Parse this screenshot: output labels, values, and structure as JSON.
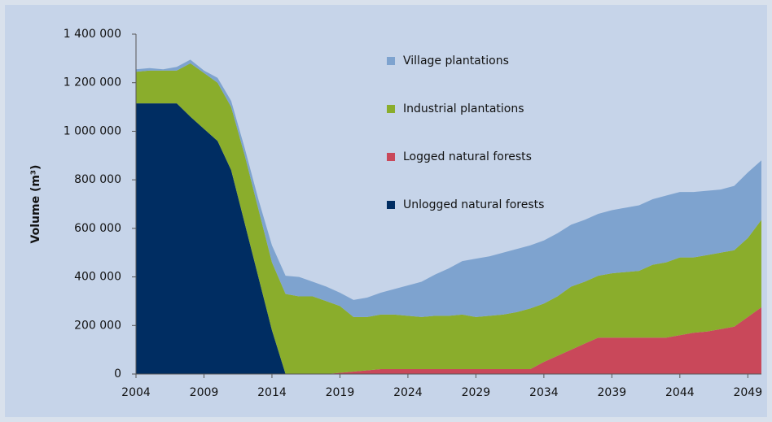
{
  "chart_data": {
    "type": "stacked_area",
    "y_label": "Volume (m³)",
    "x": [
      2004,
      2005,
      2006,
      2007,
      2008,
      2009,
      2010,
      2011,
      2012,
      2013,
      2014,
      2015,
      2016,
      2017,
      2018,
      2019,
      2020,
      2021,
      2022,
      2023,
      2024,
      2025,
      2026,
      2027,
      2028,
      2029,
      2030,
      2031,
      2032,
      2033,
      2034,
      2035,
      2036,
      2037,
      2038,
      2039,
      2040,
      2041,
      2042,
      2043,
      2044,
      2045,
      2046,
      2047,
      2048,
      2049,
      2050
    ],
    "xlim": [
      2004,
      2050
    ],
    "xticks": [
      2004,
      2009,
      2014,
      2019,
      2024,
      2029,
      2034,
      2039,
      2044,
      2049
    ],
    "ylim": [
      0,
      1400000
    ],
    "yticks": [
      0,
      {
        "value": 200000,
        "label": "200 000"
      },
      {
        "value": 400000,
        "label": "400 000"
      },
      {
        "value": 600000,
        "label": "600 000"
      },
      {
        "value": 800000,
        "label": "800 000"
      },
      {
        "value": 1000000,
        "label": "1 000 000"
      },
      {
        "value": 1200000,
        "label": "1 200 000"
      },
      {
        "value": 1400000,
        "label": "1 400 000"
      }
    ],
    "grid": false,
    "series": [
      {
        "name": "Unlogged natural forests",
        "color": "#002d62",
        "values": [
          1115000,
          1115000,
          1115000,
          1115000,
          1060000,
          1010000,
          960000,
          840000,
          620000,
          400000,
          180000,
          0,
          0,
          0,
          0,
          0,
          0,
          0,
          0,
          0,
          0,
          0,
          0,
          0,
          0,
          0,
          0,
          0,
          0,
          0,
          0,
          0,
          0,
          0,
          0,
          0,
          0,
          0,
          0,
          0,
          0,
          0,
          0,
          0,
          0,
          0,
          0
        ]
      },
      {
        "name": "Logged natural forests",
        "color": "#c9485a",
        "values": [
          0,
          0,
          0,
          0,
          0,
          0,
          0,
          0,
          0,
          0,
          0,
          0,
          0,
          0,
          0,
          5000,
          10000,
          15000,
          20000,
          20000,
          20000,
          20000,
          20000,
          20000,
          20000,
          20000,
          20000,
          20000,
          20000,
          20000,
          50000,
          75000,
          100000,
          125000,
          150000,
          150000,
          150000,
          150000,
          150000,
          150000,
          160000,
          170000,
          175000,
          185000,
          195000,
          235000,
          275000
        ]
      },
      {
        "name": "Industrial plantations",
        "color": "#8aad2c",
        "values": [
          130000,
          135000,
          135000,
          135000,
          220000,
          230000,
          240000,
          260000,
          280000,
          280000,
          280000,
          330000,
          320000,
          320000,
          300000,
          275000,
          225000,
          220000,
          225000,
          225000,
          220000,
          215000,
          220000,
          220000,
          225000,
          215000,
          220000,
          225000,
          235000,
          250000,
          240000,
          245000,
          260000,
          255000,
          255000,
          265000,
          270000,
          275000,
          300000,
          310000,
          320000,
          310000,
          315000,
          315000,
          315000,
          325000,
          360000
        ]
      },
      {
        "name": "Village plantations",
        "color": "#7ea3cf",
        "values": [
          10000,
          10000,
          5000,
          15000,
          15000,
          10000,
          20000,
          25000,
          30000,
          40000,
          70000,
          75000,
          80000,
          60000,
          60000,
          55000,
          70000,
          80000,
          90000,
          105000,
          125000,
          145000,
          170000,
          195000,
          220000,
          240000,
          245000,
          255000,
          260000,
          260000,
          260000,
          260000,
          255000,
          255000,
          255000,
          260000,
          265000,
          270000,
          270000,
          275000,
          270000,
          270000,
          265000,
          260000,
          265000,
          270000,
          245000
        ]
      }
    ]
  }
}
